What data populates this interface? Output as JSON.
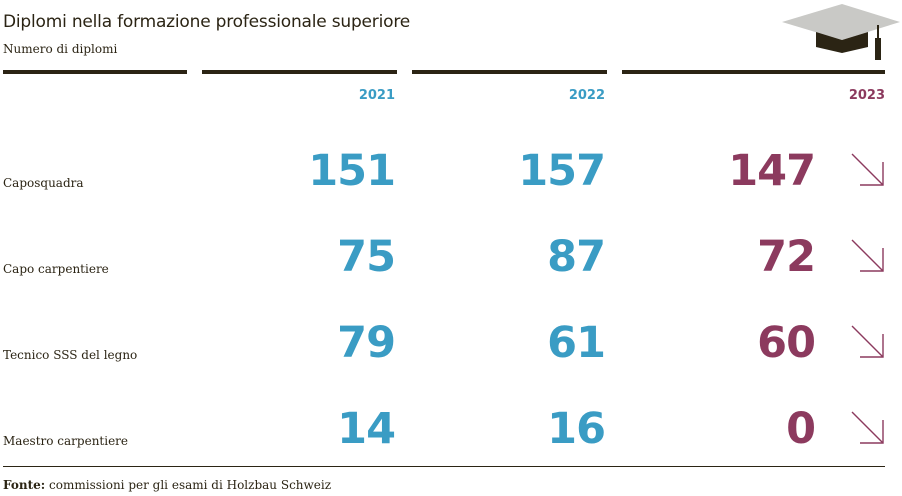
{
  "header": {
    "title": "Diplomi nella formazione professionale superiore",
    "subtitle": "Numero di diplomi",
    "icon": "graduation-cap-icon"
  },
  "colors": {
    "past": "#3a9cc4",
    "current": "#8c3a5e",
    "text": "#2b2414"
  },
  "chart_data": {
    "type": "table",
    "title": "Diplomi nella formazione professionale superiore",
    "subtitle": "Numero di diplomi",
    "columns": [
      "2021",
      "2022",
      "2023"
    ],
    "rows": [
      {
        "label": "Caposquadra",
        "values": [
          151,
          157,
          147
        ],
        "trend": "down"
      },
      {
        "label": "Capo carpentiere",
        "values": [
          75,
          87,
          72
        ],
        "trend": "down"
      },
      {
        "label": "Tecnico SSS del legno",
        "values": [
          79,
          61,
          60
        ],
        "trend": "down"
      },
      {
        "label": "Maestro carpentiere",
        "values": [
          14,
          16,
          0
        ],
        "trend": "down"
      }
    ]
  },
  "footer": {
    "source_label": "Fonte:",
    "source_text": "commissioni per gli esami di Holzbau Schweiz"
  }
}
